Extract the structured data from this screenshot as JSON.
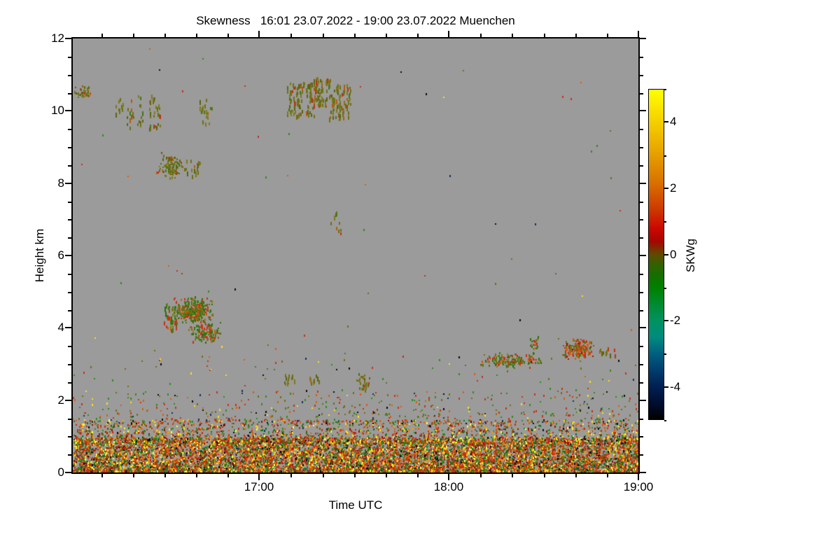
{
  "chart_data": {
    "type": "heatmap",
    "title": "Skewness   16:01 23.07.2022 - 19:00 23.07.2022 Muenchen",
    "xlabel": "Time UTC",
    "ylabel": "Height km",
    "background_color": "#9b9b9b",
    "x_range_hours": [
      16.0167,
      19.0
    ],
    "x_major_ticks": [
      {
        "hour": 17,
        "label": "17:00"
      },
      {
        "hour": 18,
        "label": "18:00"
      },
      {
        "hour": 19,
        "label": "19:00"
      }
    ],
    "x_minor_step_minutes": 10,
    "y_range_km": [
      0,
      12
    ],
    "y_major_ticks": [
      0,
      2,
      4,
      6,
      8,
      10,
      12
    ],
    "y_minor_step_km": 0.5,
    "grid": false,
    "colorbar": {
      "label": "SKWg",
      "range": [
        -5,
        5
      ],
      "major_ticks": [
        4,
        2,
        0,
        -2,
        -4
      ],
      "minor_ticks": [
        5,
        3,
        1,
        -1,
        -3,
        -5
      ],
      "gradient_stops": [
        [
          0.0,
          "#ffff00"
        ],
        [
          0.08,
          "#f7d800"
        ],
        [
          0.18,
          "#e9a800"
        ],
        [
          0.28,
          "#d97200"
        ],
        [
          0.36,
          "#cc3c00"
        ],
        [
          0.42,
          "#cc0800"
        ],
        [
          0.46,
          "#a50600"
        ],
        [
          0.5,
          "#5f4a00"
        ],
        [
          0.53,
          "#336000"
        ],
        [
          0.57,
          "#0f7200"
        ],
        [
          0.6,
          "#008000"
        ],
        [
          0.65,
          "#008a30"
        ],
        [
          0.7,
          "#00925f"
        ],
        [
          0.75,
          "#008c7d"
        ],
        [
          0.8,
          "#006080"
        ],
        [
          0.85,
          "#003e6e"
        ],
        [
          0.9,
          "#002054"
        ],
        [
          0.95,
          "#000e30"
        ],
        [
          1.0,
          "#000000"
        ]
      ]
    },
    "palettes": {
      "olive": [
        [
          "#6f6f14",
          5
        ],
        [
          "#7d7a1e",
          3
        ],
        [
          "#5a640f",
          2
        ],
        [
          "#b45a14",
          1.2
        ],
        [
          "#c03014",
          0.8
        ],
        [
          "#3c7814",
          1
        ]
      ],
      "cloudMix": [
        [
          "#3c7d14",
          4
        ],
        [
          "#2e6e0f",
          3
        ],
        [
          "#6f6f14",
          2
        ],
        [
          "#c83214",
          2.5
        ],
        [
          "#d25a0f",
          1.5
        ],
        [
          "#8c7814",
          1
        ]
      ],
      "redCore": [
        [
          "#c83214",
          3
        ],
        [
          "#d25a0f",
          2
        ],
        [
          "#3c7d14",
          2.5
        ],
        [
          "#6f6f14",
          1.5
        ],
        [
          "#8c1e0a",
          1
        ]
      ],
      "bl": [
        [
          "#cc2810",
          6
        ],
        [
          "#e05a0a",
          5
        ],
        [
          "#b43c0a",
          4
        ],
        [
          "#f0a000",
          2.5
        ],
        [
          "#ffe014",
          2.5
        ],
        [
          "#ffff3c",
          1.5
        ],
        [
          "#2e8c1e",
          4
        ],
        [
          "#1e6e14",
          3
        ],
        [
          "#007832",
          1
        ],
        [
          "#0a0a0a",
          1.5
        ],
        [
          "#14325a",
          0.7
        ],
        [
          "#6e5a14",
          1.5
        ],
        [
          "#8c0f0a",
          2
        ]
      ],
      "sparse": [
        [
          "#c83214",
          2
        ],
        [
          "#2e8c1e",
          2
        ],
        [
          "#6f6f14",
          2
        ],
        [
          "#e05a0a",
          1
        ],
        [
          "#ffe014",
          0.5
        ],
        [
          "#14325a",
          0.3
        ],
        [
          "#0a0a0a",
          0.5
        ]
      ]
    },
    "features": [
      {
        "name": "cirrus-left-edge",
        "style": "blob",
        "t": [
          16.017,
          16.12
        ],
        "h": [
          10.3,
          10.7
        ],
        "density": 0.3,
        "palette": "olive"
      },
      {
        "name": "streak-10km-1",
        "style": "streak",
        "t": [
          16.24,
          16.285
        ],
        "h": [
          9.75,
          10.3
        ],
        "density": 0.12,
        "palette": "olive"
      },
      {
        "name": "streak-10km-2",
        "style": "streak",
        "t": [
          16.3,
          16.335
        ],
        "h": [
          9.45,
          10.35
        ],
        "density": 0.12,
        "palette": "olive"
      },
      {
        "name": "streak-10km-3",
        "style": "streak",
        "t": [
          16.355,
          16.385
        ],
        "h": [
          9.5,
          10.4
        ],
        "density": 0.12,
        "palette": "olive"
      },
      {
        "name": "streak-10km-4",
        "style": "streak",
        "t": [
          16.42,
          16.475
        ],
        "h": [
          9.4,
          10.4
        ],
        "density": 0.14,
        "palette": "olive"
      },
      {
        "name": "streak-10km-5",
        "style": "streak",
        "t": [
          16.685,
          16.75
        ],
        "h": [
          9.6,
          10.3
        ],
        "density": 0.11,
        "palette": "olive"
      },
      {
        "name": "cirrus-main-a",
        "style": "streak",
        "t": [
          17.146,
          17.287
        ],
        "h": [
          9.8,
          10.75
        ],
        "density": 0.2,
        "palette": "olive"
      },
      {
        "name": "cirrus-main-b",
        "style": "streak",
        "t": [
          17.287,
          17.368
        ],
        "h": [
          10.1,
          10.9
        ],
        "density": 0.25,
        "palette": "olive"
      },
      {
        "name": "cirrus-main-c",
        "style": "streak",
        "t": [
          17.368,
          17.479
        ],
        "h": [
          9.7,
          10.7
        ],
        "density": 0.22,
        "palette": "olive"
      },
      {
        "name": "cloud-8km-core",
        "style": "blob",
        "t": [
          16.452,
          16.6
        ],
        "h": [
          8.1,
          8.85
        ],
        "density": 0.3,
        "palette": "olive"
      },
      {
        "name": "cloud-8km-wisp",
        "style": "streak",
        "t": [
          16.6,
          16.696
        ],
        "h": [
          8.15,
          8.6
        ],
        "density": 0.12,
        "palette": "olive"
      },
      {
        "name": "specks-7km",
        "style": "streak",
        "t": [
          17.368,
          17.427
        ],
        "h": [
          6.5,
          7.2
        ],
        "density": 0.06,
        "palette": "olive"
      },
      {
        "name": "cloud-4_5km-core",
        "style": "blob",
        "t": [
          16.54,
          16.76
        ],
        "h": [
          4.1,
          4.85
        ],
        "density": 0.6,
        "palette": "cloudMix"
      },
      {
        "name": "cloud-4_5km-left",
        "style": "streak",
        "t": [
          16.5,
          16.56
        ],
        "h": [
          3.9,
          4.7
        ],
        "density": 0.25,
        "palette": "cloudMix"
      },
      {
        "name": "cloud-4_5km-tail",
        "style": "blob",
        "t": [
          16.62,
          16.8
        ],
        "h": [
          3.55,
          4.2
        ],
        "density": 0.35,
        "palette": "cloudMix"
      },
      {
        "name": "wisp-2_7km-a",
        "style": "streak",
        "t": [
          17.095,
          17.19
        ],
        "h": [
          2.4,
          2.72
        ],
        "density": 0.1,
        "palette": "olive"
      },
      {
        "name": "wisp-2_7km-b",
        "style": "streak",
        "t": [
          17.25,
          17.316
        ],
        "h": [
          2.35,
          2.68
        ],
        "density": 0.1,
        "palette": "olive"
      },
      {
        "name": "cloud-2_6km",
        "style": "blob",
        "t": [
          17.508,
          17.59
        ],
        "h": [
          2.2,
          2.8
        ],
        "density": 0.22,
        "palette": "olive"
      },
      {
        "name": "band-3_2km",
        "style": "blob",
        "t": [
          18.151,
          18.505
        ],
        "h": [
          2.9,
          3.3
        ],
        "density": 0.3,
        "palette": "cloudMix"
      },
      {
        "name": "blob-3_5km",
        "style": "blob",
        "t": [
          18.41,
          18.48
        ],
        "h": [
          3.4,
          3.75
        ],
        "density": 0.28,
        "palette": "cloudMix"
      },
      {
        "name": "cloud-3_4km-right",
        "style": "blob",
        "t": [
          18.587,
          18.779
        ],
        "h": [
          3.1,
          3.72
        ],
        "density": 0.45,
        "palette": "redCore"
      },
      {
        "name": "wisp-right-edge",
        "style": "streak",
        "t": [
          18.78,
          18.875
        ],
        "h": [
          3.15,
          3.45
        ],
        "density": 0.12,
        "palette": "olive"
      },
      {
        "name": "bl-core",
        "style": "layer",
        "t": [
          16.017,
          19.0
        ],
        "h": [
          0,
          0.95
        ],
        "density": 1.1,
        "bias": 1.3,
        "palette": "bl"
      },
      {
        "name": "bl-mid",
        "style": "layer",
        "t": [
          16.017,
          19.0
        ],
        "h": [
          0.8,
          1.45
        ],
        "density": 0.3,
        "bias": 1.6,
        "palette": "bl"
      },
      {
        "name": "bl-top-specks",
        "style": "layer",
        "t": [
          16.017,
          19.0
        ],
        "h": [
          1.35,
          2.25
        ],
        "density": 0.055,
        "bias": 1.5,
        "palette": "sparse"
      },
      {
        "name": "sparse-low",
        "style": "layer",
        "t": [
          16.017,
          19.0
        ],
        "h": [
          2.2,
          3.2
        ],
        "density": 0.008,
        "bias": 1.0,
        "palette": "sparse"
      },
      {
        "name": "sparse-high",
        "style": "layer",
        "t": [
          16.017,
          19.0
        ],
        "h": [
          3.2,
          11.8
        ],
        "density": 0.0006,
        "bias": 1.0,
        "palette": "sparse"
      }
    ]
  }
}
